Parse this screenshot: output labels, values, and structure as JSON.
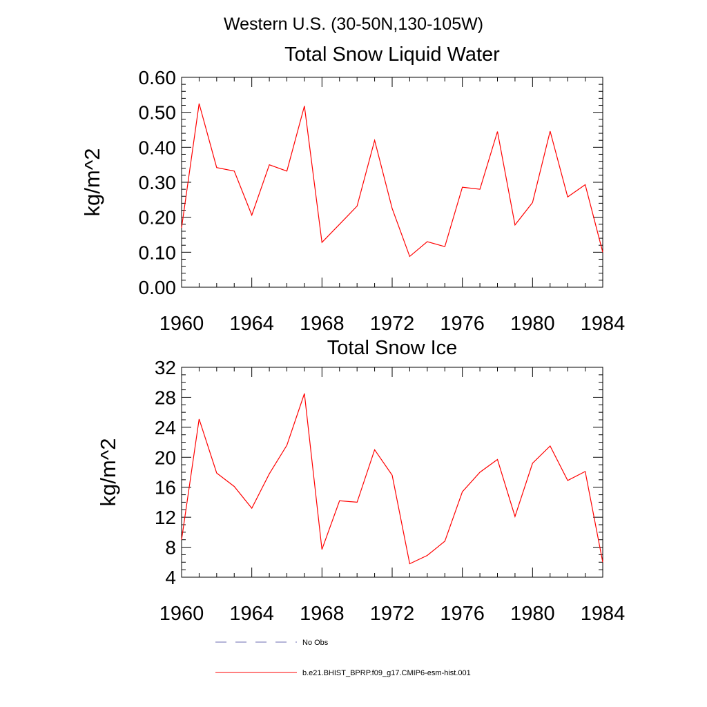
{
  "figure": {
    "title": "Western U.S. (30-50N,130-105W)"
  },
  "chart_data": [
    {
      "type": "line",
      "title": "Total Snow Liquid Water",
      "xlabel": "",
      "ylabel": "kg/m^2",
      "xlim": [
        1960,
        1984
      ],
      "ylim": [
        0,
        0.6
      ],
      "xticks": [
        1960,
        1964,
        1968,
        1972,
        1976,
        1980,
        1984
      ],
      "xtick_labels": [
        "1960",
        "1964",
        "1968",
        "1972",
        "1976",
        "1980",
        "1984"
      ],
      "yticks": [
        0,
        0.1,
        0.2,
        0.3,
        0.4,
        0.5,
        0.6
      ],
      "ytick_labels": [
        "0.00",
        "0.10",
        "0.20",
        "0.30",
        "0.40",
        "0.50",
        "0.60"
      ],
      "grid": false,
      "series": [
        {
          "name": "b.e21.BHIST_BPRP.f09_g17.CMIP6-esm-hist.001",
          "color": "#ff0000",
          "x": [
            1960,
            1961,
            1962,
            1963,
            1964,
            1965,
            1966,
            1967,
            1968,
            1969,
            1970,
            1971,
            1972,
            1973,
            1974,
            1975,
            1976,
            1977,
            1978,
            1979,
            1980,
            1981,
            1982,
            1983,
            1984
          ],
          "values": [
            0.17,
            0.525,
            0.342,
            0.332,
            0.206,
            0.35,
            0.332,
            0.518,
            0.128,
            0.18,
            0.232,
            0.42,
            0.225,
            0.088,
            0.13,
            0.116,
            0.286,
            0.28,
            0.445,
            0.178,
            0.242,
            0.446,
            0.258,
            0.293,
            0.1
          ]
        }
      ]
    },
    {
      "type": "line",
      "title": "Total Snow Ice",
      "xlabel": "",
      "ylabel": "kg/m^2",
      "xlim": [
        1960,
        1984
      ],
      "ylim": [
        4,
        32
      ],
      "xticks": [
        1960,
        1964,
        1968,
        1972,
        1976,
        1980,
        1984
      ],
      "xtick_labels": [
        "1960",
        "1964",
        "1968",
        "1972",
        "1976",
        "1980",
        "1984"
      ],
      "yticks": [
        4,
        8,
        12,
        16,
        20,
        24,
        28,
        32
      ],
      "ytick_labels": [
        "4",
        "8",
        "12",
        "16",
        "20",
        "24",
        "28",
        "32"
      ],
      "grid": false,
      "series": [
        {
          "name": "b.e21.BHIST_BPRP.f09_g17.CMIP6-esm-hist.001",
          "color": "#ff0000",
          "x": [
            1960,
            1961,
            1962,
            1963,
            1964,
            1965,
            1966,
            1967,
            1968,
            1969,
            1970,
            1971,
            1972,
            1973,
            1974,
            1975,
            1976,
            1977,
            1978,
            1979,
            1980,
            1981,
            1982,
            1983,
            1984
          ],
          "values": [
            9.0,
            25.1,
            17.9,
            16.1,
            13.2,
            17.8,
            21.6,
            28.5,
            7.7,
            14.2,
            14.0,
            21.0,
            17.6,
            5.8,
            6.9,
            8.8,
            15.4,
            18.0,
            19.7,
            12.1,
            19.2,
            21.5,
            16.9,
            18.1,
            6.0
          ]
        }
      ]
    }
  ],
  "legend": {
    "placement": "bottom",
    "entries": [
      {
        "label": "No Obs",
        "color": "#6a6ab0",
        "style": "dashed"
      },
      {
        "label": "b.e21.BHIST_BPRP.f09_g17.CMIP6-esm-hist.001",
        "color": "#ff0000",
        "style": "solid"
      }
    ]
  }
}
